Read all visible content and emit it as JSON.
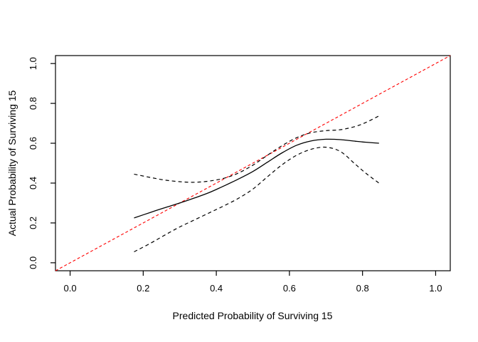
{
  "figure": {
    "background_color": "#ffffff",
    "axis_color": "#000000",
    "ideal_line_color": "#ff0000",
    "curve_color": "#000000"
  },
  "chart_data": {
    "type": "line",
    "title": "",
    "xlabel": "Predicted Probability of Surviving 15",
    "ylabel": "Actual Probability of Surviving 15",
    "xlim": [
      -0.04,
      1.04
    ],
    "ylim": [
      -0.04,
      1.04
    ],
    "grid": false,
    "legend": null,
    "x_ticks": {
      "values": [
        0.0,
        0.2,
        0.4,
        0.6,
        0.8,
        1.0
      ],
      "labels": [
        "0.0",
        "0.2",
        "0.4",
        "0.6",
        "0.8",
        "1.0"
      ]
    },
    "y_ticks": {
      "values": [
        0.0,
        0.2,
        0.4,
        0.6,
        0.8,
        1.0
      ],
      "labels": [
        "0.0",
        "0.2",
        "0.4",
        "0.6",
        "0.8",
        "1.0"
      ]
    },
    "series": [
      {
        "name": "ideal-line",
        "label": "Ideal (y = x) reference line",
        "color": "#ff0000",
        "line_style": "dashed",
        "x": [
          -0.04,
          1.04
        ],
        "y": [
          -0.04,
          1.04
        ]
      },
      {
        "name": "upper-confidence-band",
        "label": "Upper confidence band",
        "color": "#000000",
        "line_style": "dashed",
        "x": [
          0.175,
          0.22,
          0.26,
          0.3,
          0.34,
          0.38,
          0.42,
          0.46,
          0.5,
          0.54,
          0.58,
          0.62,
          0.66,
          0.7,
          0.74,
          0.78,
          0.81,
          0.845
        ],
        "y": [
          0.445,
          0.428,
          0.415,
          0.407,
          0.404,
          0.41,
          0.424,
          0.45,
          0.49,
          0.54,
          0.588,
          0.628,
          0.653,
          0.663,
          0.668,
          0.684,
          0.705,
          0.737
        ]
      },
      {
        "name": "lower-confidence-band",
        "label": "Lower confidence band",
        "color": "#000000",
        "line_style": "dashed",
        "x": [
          0.175,
          0.22,
          0.26,
          0.3,
          0.34,
          0.38,
          0.42,
          0.46,
          0.5,
          0.54,
          0.58,
          0.62,
          0.66,
          0.7,
          0.74,
          0.78,
          0.81,
          0.845
        ],
        "y": [
          0.055,
          0.098,
          0.14,
          0.18,
          0.215,
          0.25,
          0.285,
          0.323,
          0.37,
          0.432,
          0.492,
          0.54,
          0.57,
          0.58,
          0.558,
          0.495,
          0.448,
          0.4
        ]
      },
      {
        "name": "calibration-curve",
        "label": "Calibration curve",
        "color": "#000000",
        "line_style": "solid",
        "x": [
          0.175,
          0.22,
          0.26,
          0.3,
          0.34,
          0.38,
          0.42,
          0.46,
          0.5,
          0.54,
          0.58,
          0.62,
          0.66,
          0.7,
          0.74,
          0.78,
          0.81,
          0.845
        ],
        "y": [
          0.225,
          0.253,
          0.277,
          0.3,
          0.325,
          0.352,
          0.385,
          0.42,
          0.458,
          0.505,
          0.552,
          0.59,
          0.612,
          0.62,
          0.618,
          0.61,
          0.605,
          0.6
        ]
      }
    ]
  }
}
